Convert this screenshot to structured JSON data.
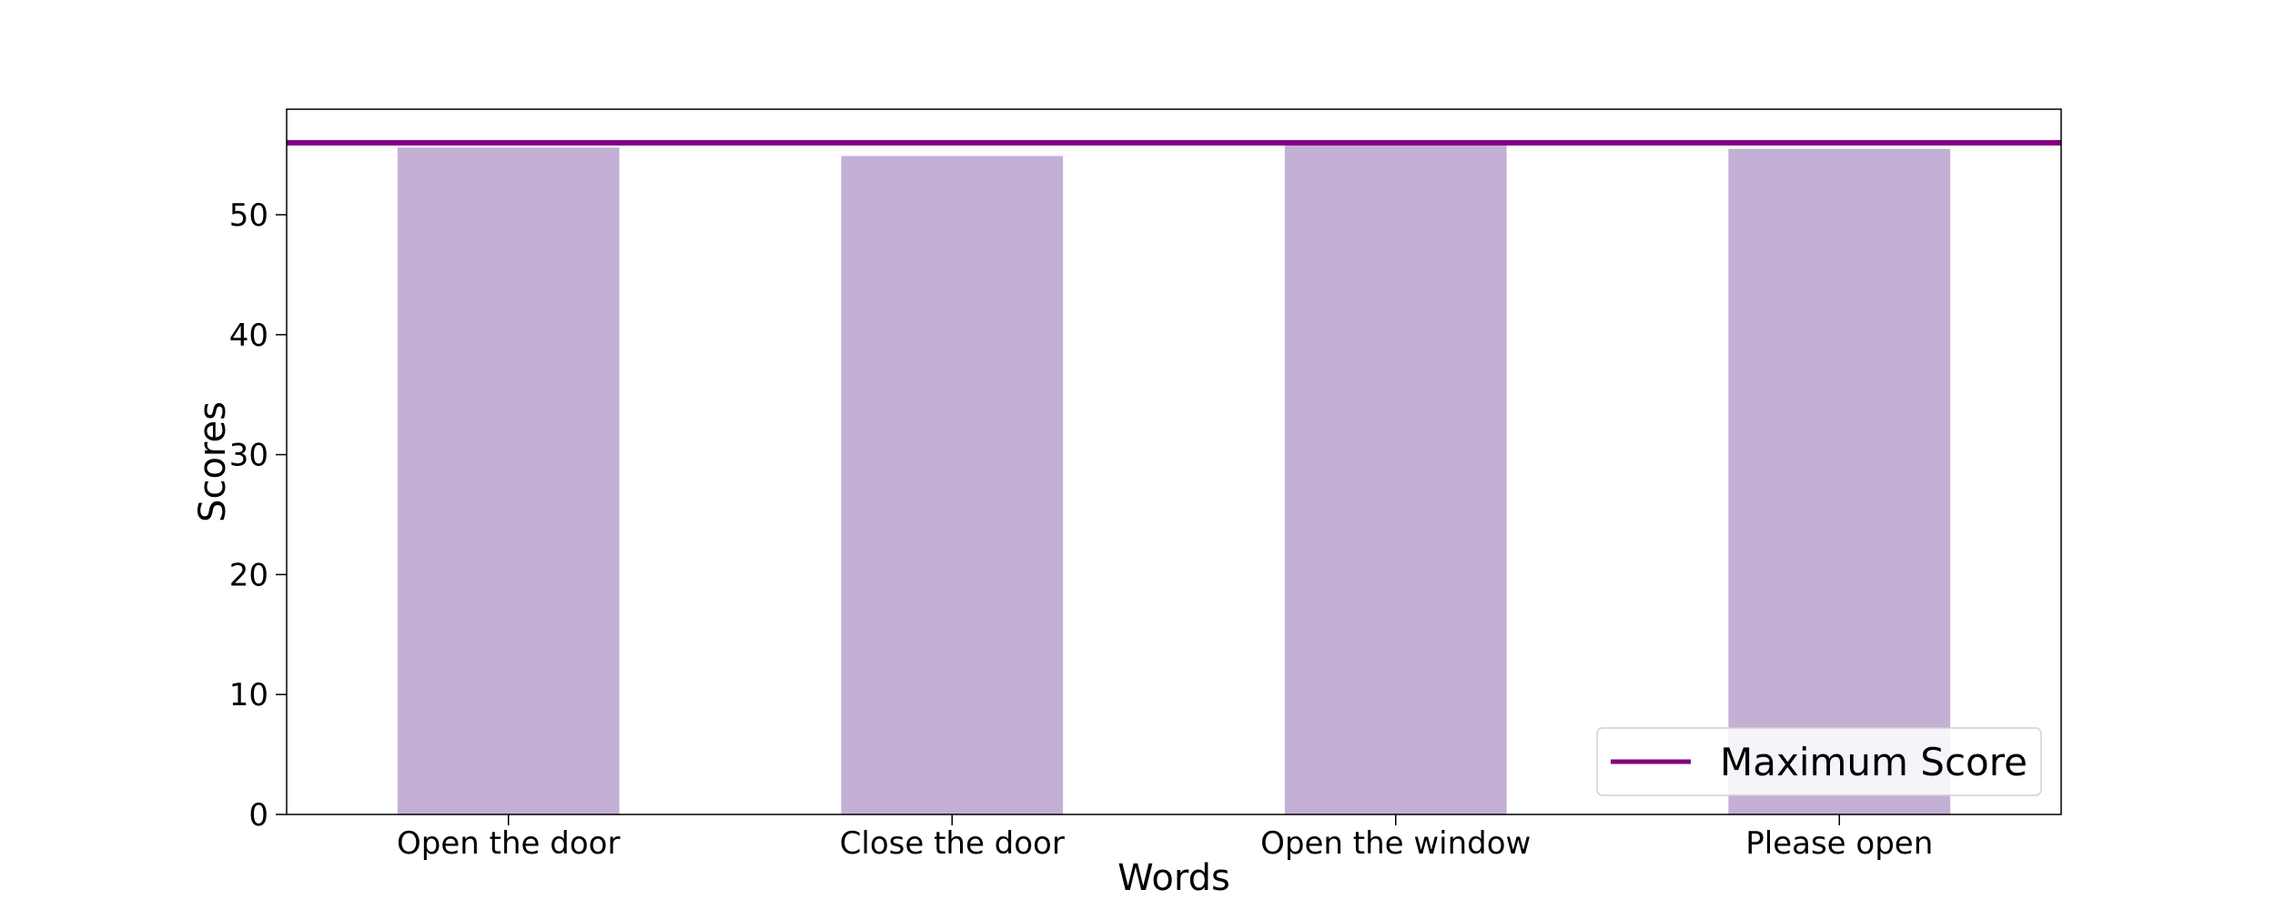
{
  "chart_data": {
    "type": "bar",
    "categories": [
      "Open the door",
      "Close the door",
      "Open the window",
      "Please open"
    ],
    "values": [
      55.6,
      54.9,
      55.8,
      55.5
    ],
    "title": "",
    "xlabel": "Words",
    "ylabel": "Scores",
    "ylim": [
      0,
      58.8
    ],
    "yticks": [
      0,
      10,
      20,
      30,
      40,
      50
    ],
    "grid": false,
    "reference_line": {
      "name": "Maximum Score",
      "value": 56
    },
    "legend": {
      "position": "bottom-right",
      "entries": [
        "Maximum Score"
      ]
    },
    "colors": {
      "bar": "#c4afd5",
      "line": "#800080",
      "frame": "#000000"
    }
  }
}
